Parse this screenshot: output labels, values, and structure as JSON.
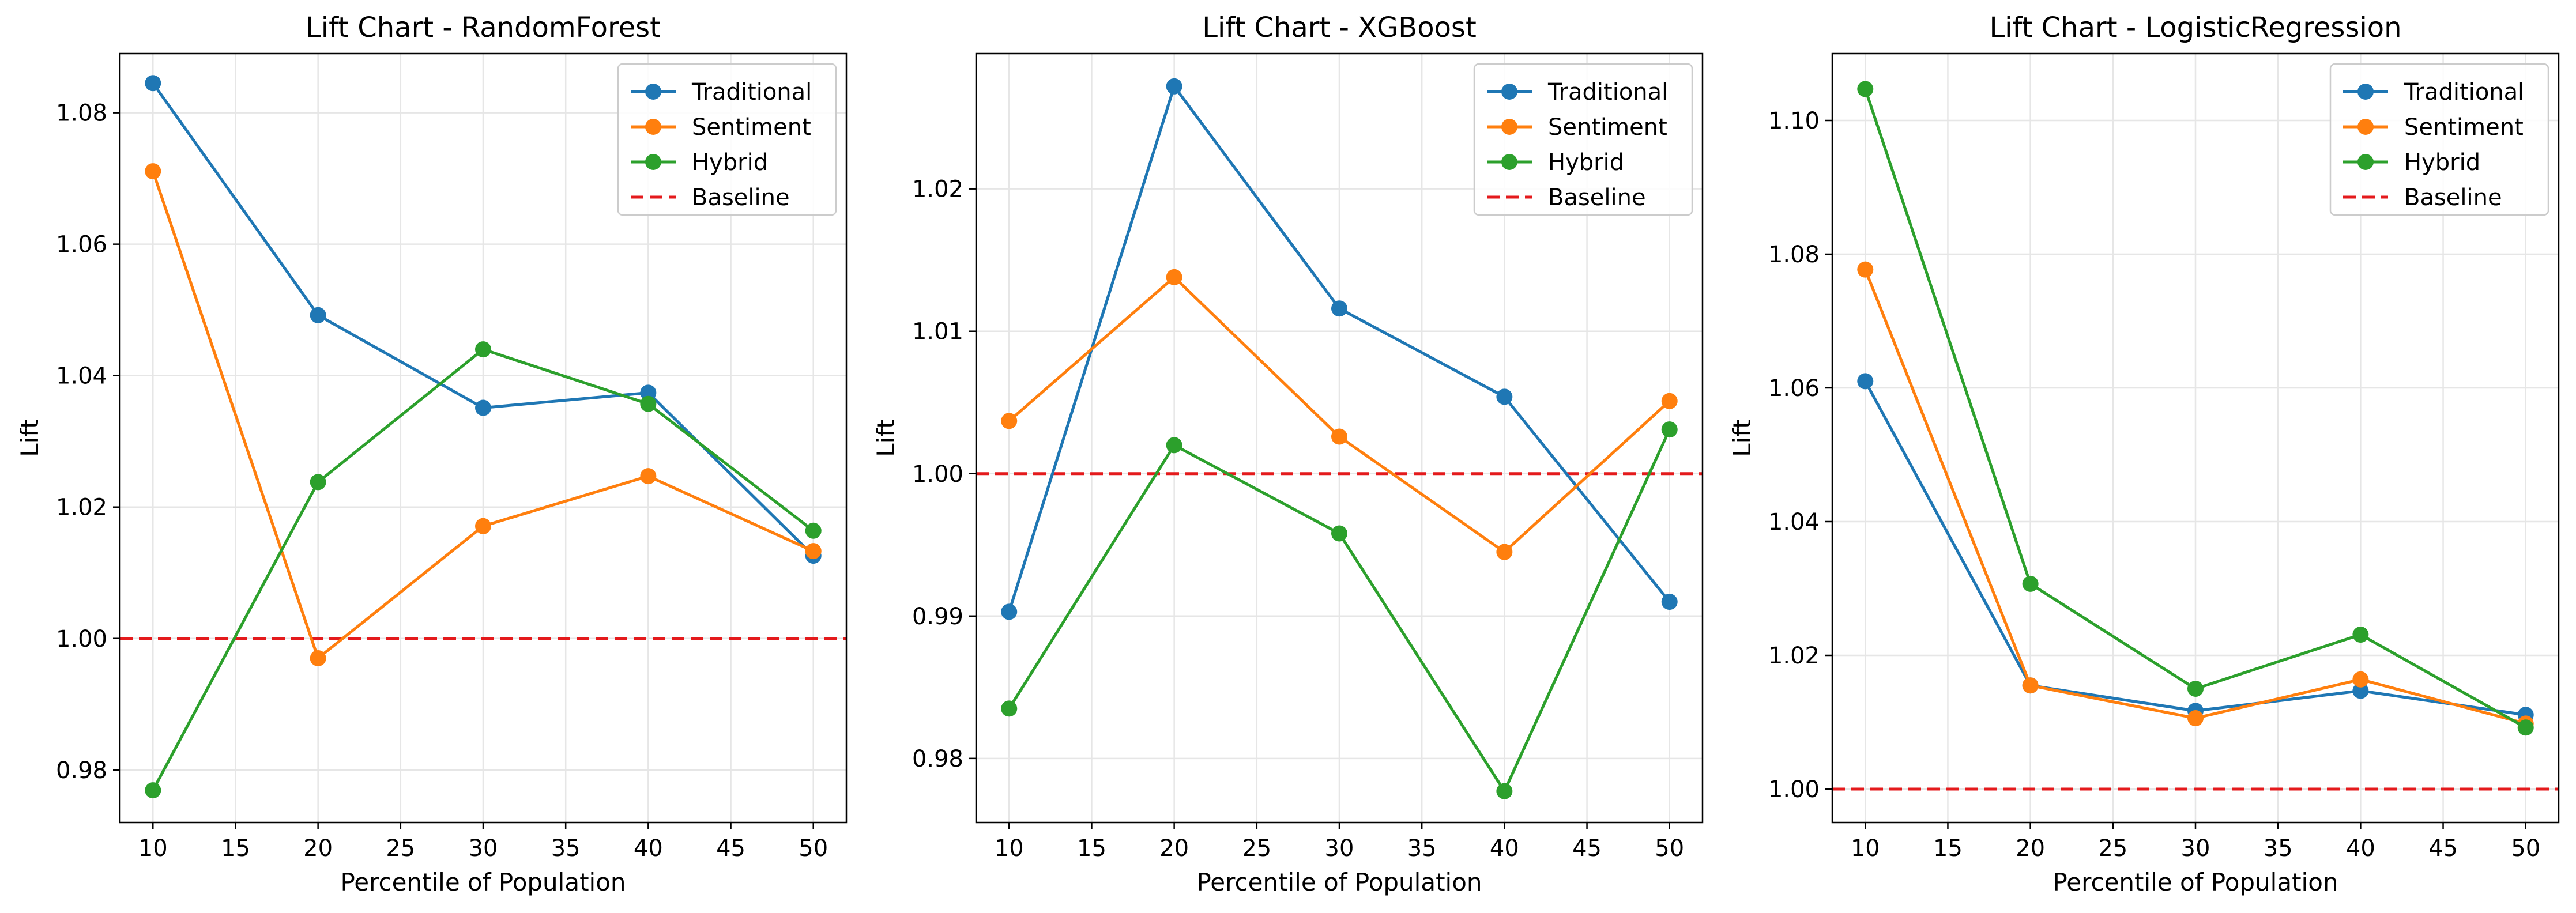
{
  "colors": {
    "Traditional": "#1f77b4",
    "Sentiment": "#ff7f0e",
    "Hybrid": "#2ca02c",
    "Baseline": "#e41a1c",
    "grid": "#e6e6e6",
    "axis": "#000000"
  },
  "chart_data": [
    {
      "type": "line",
      "title": "Lift Chart - RandomForest",
      "xlabel": "Percentile of Population",
      "ylabel": "Lift",
      "xlim": [
        8,
        52
      ],
      "ylim": [
        0.972,
        1.089
      ],
      "xticks": [
        10,
        15,
        20,
        25,
        30,
        35,
        40,
        45,
        50
      ],
      "yticks": [
        0.98,
        1.0,
        1.02,
        1.04,
        1.06,
        1.08
      ],
      "ytick_labels": [
        "0.98",
        "1.00",
        "1.02",
        "1.04",
        "1.06",
        "1.08"
      ],
      "grid": true,
      "legend": "top-right",
      "x": [
        10,
        20,
        30,
        40,
        50
      ],
      "series": [
        {
          "name": "Traditional",
          "values": [
            1.0845,
            1.0492,
            1.0351,
            1.0374,
            1.0126
          ]
        },
        {
          "name": "Sentiment",
          "values": [
            1.0711,
            0.997,
            1.0171,
            1.0247,
            1.0133
          ]
        },
        {
          "name": "Hybrid",
          "values": [
            0.9769,
            1.0238,
            1.044,
            1.0357,
            1.0164
          ]
        }
      ],
      "baseline": {
        "name": "Baseline",
        "value": 1.0
      }
    },
    {
      "type": "line",
      "title": "Lift Chart - XGBoost",
      "xlabel": "Percentile of Population",
      "ylabel": "Lift",
      "xlim": [
        8,
        52
      ],
      "ylim": [
        0.9755,
        1.0295
      ],
      "xticks": [
        10,
        15,
        20,
        25,
        30,
        35,
        40,
        45,
        50
      ],
      "yticks": [
        0.98,
        0.99,
        1.0,
        1.01,
        1.02
      ],
      "ytick_labels": [
        "0.98",
        "0.99",
        "1.00",
        "1.01",
        "1.02"
      ],
      "grid": true,
      "legend": "top-right",
      "x": [
        10,
        20,
        30,
        40,
        50
      ],
      "series": [
        {
          "name": "Traditional",
          "values": [
            0.9903,
            1.0272,
            1.0116,
            1.0054,
            0.991
          ]
        },
        {
          "name": "Sentiment",
          "values": [
            1.0037,
            1.0138,
            1.0026,
            0.9945,
            1.0051
          ]
        },
        {
          "name": "Hybrid",
          "values": [
            0.9835,
            1.002,
            0.9958,
            0.9777,
            1.0031
          ]
        }
      ],
      "baseline": {
        "name": "Baseline",
        "value": 1.0
      }
    },
    {
      "type": "line",
      "title": "Lift Chart - LogisticRegression",
      "xlabel": "Percentile of Population",
      "ylabel": "Lift",
      "xlim": [
        8,
        52
      ],
      "ylim": [
        0.995,
        1.11
      ],
      "xticks": [
        10,
        15,
        20,
        25,
        30,
        35,
        40,
        45,
        50
      ],
      "yticks": [
        1.0,
        1.02,
        1.04,
        1.06,
        1.08,
        1.1
      ],
      "ytick_labels": [
        "1.00",
        "1.02",
        "1.04",
        "1.06",
        "1.08",
        "1.10"
      ],
      "grid": true,
      "legend": "top-right",
      "x": [
        10,
        20,
        30,
        40,
        50
      ],
      "series": [
        {
          "name": "Traditional",
          "values": [
            1.061,
            1.0155,
            1.0117,
            1.0147,
            1.0111
          ]
        },
        {
          "name": "Sentiment",
          "values": [
            1.0777,
            1.0155,
            1.0106,
            1.0164,
            1.0098
          ]
        },
        {
          "name": "Hybrid",
          "values": [
            1.1047,
            1.0307,
            1.015,
            1.0231,
            1.0092
          ]
        }
      ],
      "baseline": {
        "name": "Baseline",
        "value": 1.0
      }
    }
  ]
}
